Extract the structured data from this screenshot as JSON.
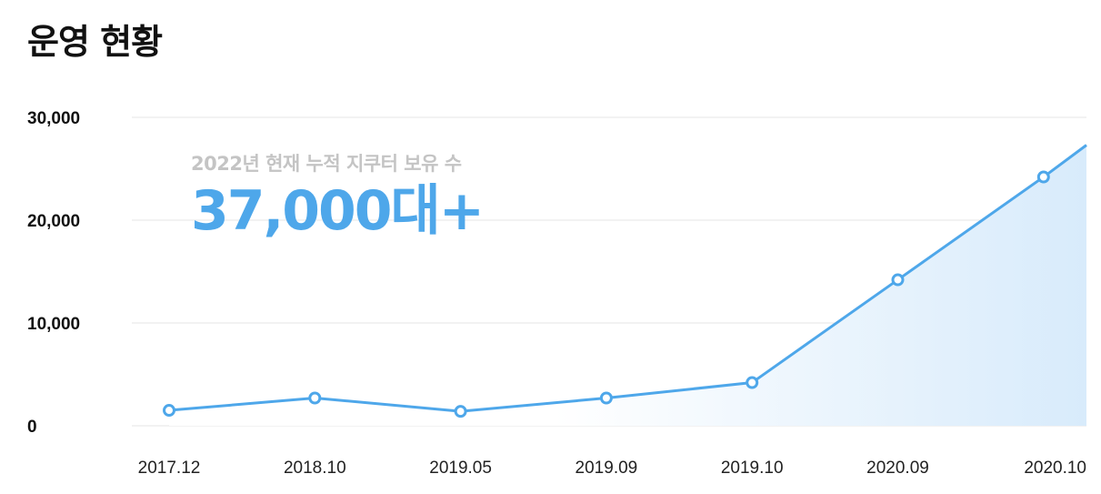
{
  "header": {
    "title": "운영 현황"
  },
  "callout": {
    "label": "2022년 현재 누적 지쿠터 보유 수",
    "value": "37,000대+"
  },
  "colors": {
    "line": "#4ea7ea",
    "area_start": "#ffffff",
    "area_end": "#d8ebfb",
    "callout_value": "#4ea7ea",
    "callout_label": "#c4c4c4"
  },
  "chart_data": {
    "type": "line",
    "categories": [
      "2017.12",
      "2018.10",
      "2019.05",
      "2019.09",
      "2019.10",
      "2020.09",
      "2020.10"
    ],
    "series": [
      {
        "values": [
          1500,
          2700,
          1400,
          2700,
          4200,
          14200,
          24200
        ]
      }
    ],
    "end_value": 27300,
    "yticks": [
      {
        "value": 0,
        "label": "0"
      },
      {
        "value": 10000,
        "label": "10,000"
      },
      {
        "value": 20000,
        "label": "20,000"
      },
      {
        "value": 30000,
        "label": "30,000"
      }
    ],
    "ylim": [
      0,
      30000
    ],
    "grid": true,
    "area_fill": true
  }
}
